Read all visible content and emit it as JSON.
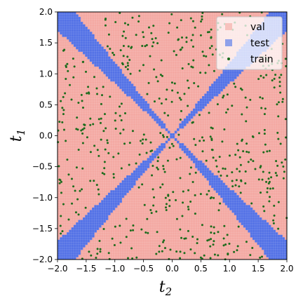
{
  "chart_data": {
    "type": "scatter",
    "xlabel": "t",
    "xlabel_sub": "2",
    "ylabel": "t",
    "ylabel_sub": "1",
    "xlim": [
      -2.0,
      2.0
    ],
    "ylim": [
      -2.0,
      2.0
    ],
    "xticks": [
      "−2.0",
      "−1.5",
      "−1.0",
      "−0.5",
      "0.0",
      "0.5",
      "1.0",
      "1.5",
      "2.0"
    ],
    "yticks": [
      "−2.0",
      "−1.5",
      "−1.0",
      "−0.5",
      "0.0",
      "0.5",
      "1.0",
      "1.5",
      "2.0"
    ],
    "grid_resolution": 100,
    "legend_position": "upper-right",
    "series": [
      {
        "name": "val",
        "color": "#f4a9a3",
        "marker": "square",
        "region": "background where |t1| is not close to |t2|"
      },
      {
        "name": "test",
        "color": "#5472e6",
        "marker": "square",
        "region": "bands along t1 = t2 and t1 = -t2, width growing with |t|"
      },
      {
        "name": "train",
        "color": "#1c6b1c",
        "marker": "dot",
        "count": 600,
        "region": "random points within val region"
      }
    ]
  }
}
